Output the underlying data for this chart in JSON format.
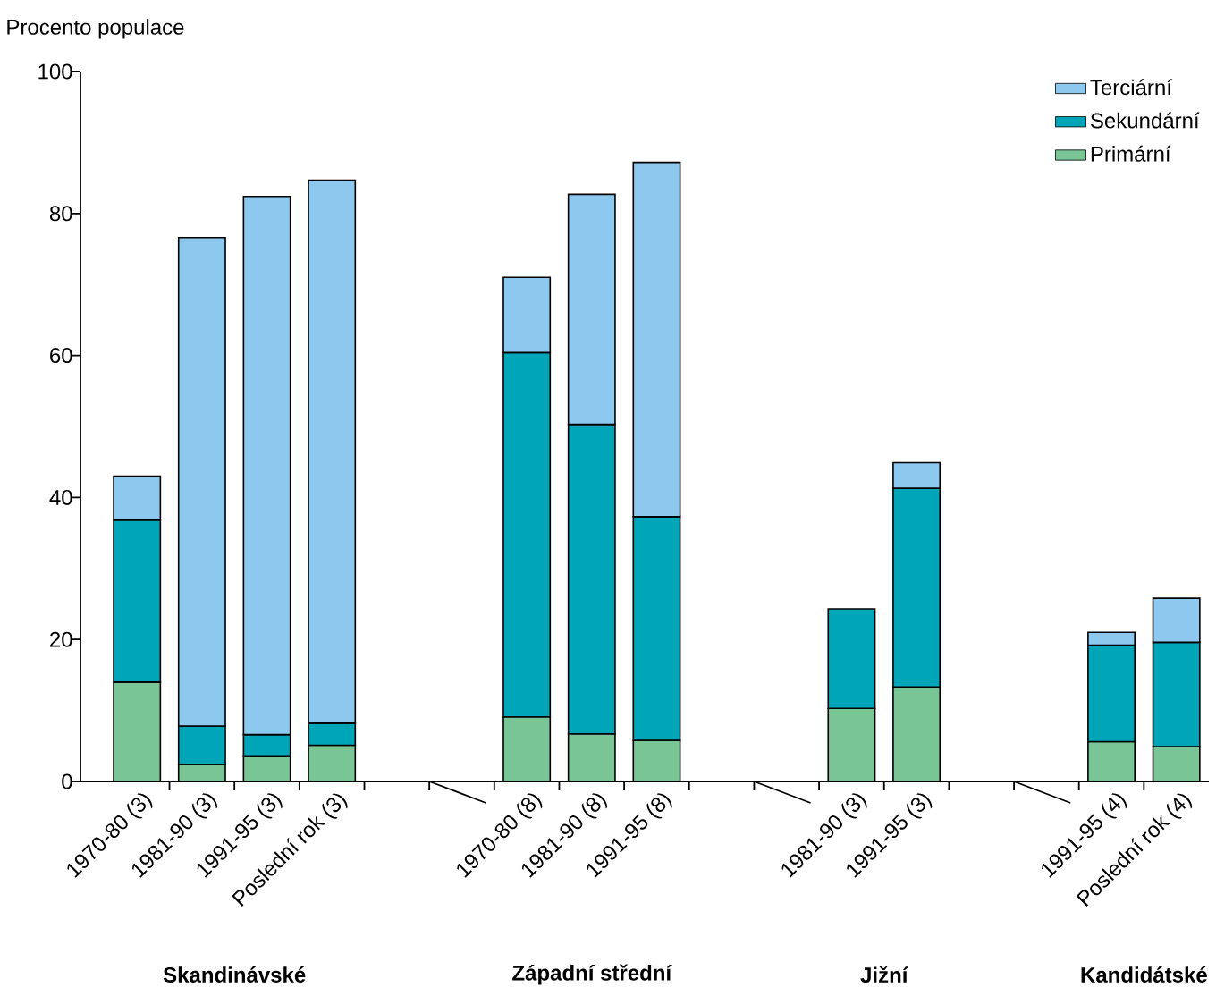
{
  "chart_data": {
    "type": "bar",
    "stacked": true,
    "ylabel": "Procento populace",
    "categories": [
      "1970-80 (3)",
      "1981-90 (3)",
      "1991-95 (3)",
      "Poslední rok (3)",
      null,
      null,
      "1970-80 (8)",
      "1981-90 (8)",
      "1991-95 (8)",
      null,
      null,
      "1981-90 (3)",
      "1991-95 (3)",
      null,
      null,
      "1991-95 (4)",
      "Poslední rok (4)"
    ],
    "series": [
      {
        "name": "Primární",
        "color": "#7ac596",
        "values": [
          14,
          2.4,
          3.5,
          5.1,
          null,
          null,
          9.1,
          6.7,
          5.8,
          null,
          null,
          10.3,
          13.3,
          null,
          null,
          5.6,
          4.9
        ]
      },
      {
        "name": "Sekundární",
        "color": "#00a6b8",
        "values": [
          22.8,
          5.4,
          3.1,
          3.1,
          null,
          null,
          51.3,
          43.6,
          31.5,
          null,
          null,
          14.0,
          28.0,
          null,
          null,
          13.6,
          14.7
        ]
      },
      {
        "name": "Terciární",
        "color": "#8dc8ee",
        "values": [
          6.2,
          68.8,
          75.8,
          76.5,
          null,
          null,
          10.6,
          32.4,
          49.9,
          null,
          null,
          null,
          3.6,
          null,
          null,
          1.8,
          6.2
        ]
      }
    ],
    "ylim": [
      0,
      100
    ],
    "yticks": [
      0,
      20,
      40,
      60,
      80,
      100
    ],
    "legend": "top right",
    "annotations": [
      "Skandinávské",
      "Západní střední",
      "Jižní",
      "Kandidátské"
    ]
  }
}
